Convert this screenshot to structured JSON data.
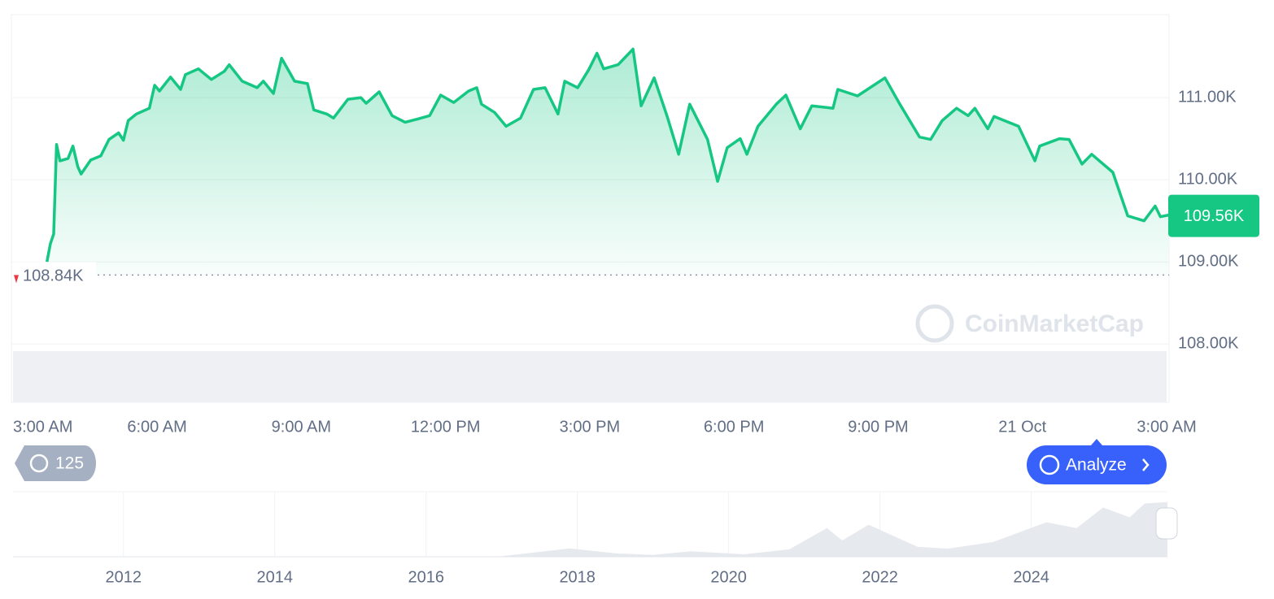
{
  "chart_data": [
    {
      "type": "line",
      "color": "#16c784",
      "x": [
        0.71,
        0.78,
        0.85,
        0.91,
        0.98,
        1.15,
        1.25,
        1.35,
        1.42,
        1.62,
        1.83,
        2.0,
        2.2,
        2.3,
        2.4,
        2.57,
        2.84,
        2.95,
        3.05,
        3.28,
        3.49,
        3.59,
        3.86,
        4.13,
        4.4,
        4.5,
        4.77,
        5.08,
        5.21,
        5.42,
        5.59,
        5.86,
        6.13,
        6.26,
        6.53,
        6.67,
        6.97,
        7.24,
        7.35,
        7.62,
        7.89,
        8.16,
        8.43,
        8.67,
        8.9,
        9.17,
        9.48,
        9.65,
        9.75,
        10.02,
        10.26,
        10.56,
        10.83,
        11.07,
        11.34,
        11.48,
        11.75,
        11.98,
        12.15,
        12.29,
        12.59,
        12.9,
        13.07,
        13.34,
        13.61,
        13.85,
        14.08,
        14.45,
        14.66,
        14.86,
        15.13,
        15.27,
        15.5,
        15.88,
        16.08,
        16.38,
        16.62,
        17.06,
        17.16,
        17.57,
        18.14,
        18.45,
        18.86,
        19.09,
        19.33,
        19.63,
        19.87,
        20.01,
        20.28,
        20.41,
        20.92,
        21.26,
        21.36,
        21.77,
        21.97,
        22.24,
        22.44,
        22.88,
        23.19,
        23.53,
        23.76,
        23.87,
        24.04
      ],
      "values": [
        109000,
        109220,
        109340,
        110430,
        110230,
        110260,
        110410,
        110160,
        110070,
        110240,
        110290,
        110490,
        110570,
        110480,
        110720,
        110800,
        110870,
        111150,
        111080,
        111250,
        111100,
        111280,
        111350,
        111220,
        111320,
        111400,
        111200,
        111120,
        111200,
        111050,
        111480,
        111200,
        111170,
        110850,
        110800,
        110750,
        110980,
        111000,
        110930,
        111070,
        110780,
        110700,
        110740,
        110780,
        111030,
        110940,
        111080,
        111120,
        110920,
        110820,
        110650,
        110750,
        111100,
        111120,
        110800,
        111200,
        111120,
        111340,
        111540,
        111350,
        111400,
        111590,
        110900,
        111240,
        110770,
        110310,
        110920,
        110490,
        109980,
        110390,
        110500,
        110310,
        110650,
        110920,
        111030,
        110620,
        110900,
        110870,
        111100,
        111020,
        111240,
        110920,
        110520,
        110490,
        110720,
        110870,
        110780,
        110870,
        110620,
        110770,
        110650,
        110230,
        110410,
        110500,
        110490,
        110190,
        110310,
        110090,
        109560,
        109500,
        109680,
        109550,
        109570
      ],
      "xlim": [
        -0.03,
        24.05
      ],
      "xticks": [
        {
          "value": 0,
          "label": "3:00 AM"
        },
        {
          "value": 3,
          "label": "6:00 AM"
        },
        {
          "value": 6,
          "label": "9:00 AM"
        },
        {
          "value": 9,
          "label": "12:00 PM"
        },
        {
          "value": 12,
          "label": "3:00 PM"
        },
        {
          "value": 15,
          "label": "6:00 PM"
        },
        {
          "value": 18,
          "label": "9:00 PM"
        },
        {
          "value": 21,
          "label": "21 Oct"
        },
        {
          "value": 24,
          "label": "3:00 AM"
        }
      ],
      "ylim": [
        107290,
        112010
      ],
      "yticks": [
        {
          "value": 108000,
          "label": "108.00K"
        },
        {
          "value": 109000,
          "label": "109.00K"
        },
        {
          "value": 110000,
          "label": "110.00K"
        },
        {
          "value": 111000,
          "label": "111.00K"
        }
      ],
      "grid": true,
      "reference_line": {
        "value": 108840,
        "label": "108.84K"
      },
      "last_value": {
        "value": 109560,
        "label": "109.56K"
      }
    },
    {
      "type": "area",
      "color": "#e6e9ee",
      "x": [
        2010.6,
        2013,
        2014,
        2015,
        2016,
        2017,
        2017.9,
        2018.5,
        2019,
        2019.5,
        2020.2,
        2020.8,
        2021.3,
        2021.5,
        2021.85,
        2022.5,
        2022.9,
        2023.5,
        2024.2,
        2024.6,
        2024.95,
        2025.3,
        2025.5,
        2025.8
      ],
      "values": [
        0,
        100,
        800,
        300,
        400,
        1000,
        17000,
        7000,
        3700,
        11000,
        5000,
        15000,
        58000,
        33000,
        65000,
        20000,
        16500,
        30000,
        70000,
        58000,
        100000,
        80000,
        108000,
        111000
      ],
      "xlim": [
        2010.54,
        2025.8
      ],
      "xticks": [
        2012,
        2014,
        2016,
        2018,
        2020,
        2022,
        2024
      ],
      "ylim": [
        0,
        132000
      ],
      "grid": true
    }
  ],
  "controls": {
    "history_count": "125",
    "analyze_button": "Analyze",
    "watermark": "CoinMarketCap"
  }
}
